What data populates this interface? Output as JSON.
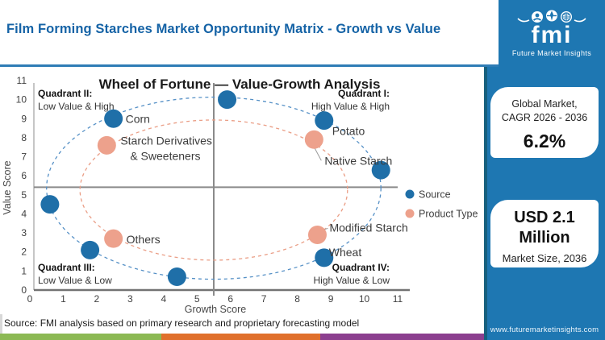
{
  "window": {
    "header_title": "Film Forming Starches Market Opportunity Matrix - Growth vs Value"
  },
  "logo": {
    "brand": "fmi",
    "tagline": "Future Market Insights"
  },
  "sidebar": {
    "cagr_card": {
      "line1": "Global Market,",
      "line2": "CAGR 2026 - 2036",
      "value": "6.2%"
    },
    "size_card": {
      "value": "USD 2.1 Million",
      "label": "Market Size, 2036"
    },
    "website": "www.futuremarketinsights.com"
  },
  "footer": {
    "source_note": "Source: FMI analysis based on primary research and proprietary forecasting model",
    "stripe_colors": [
      "#8cb954",
      "#e0702c",
      "#8c3f8f"
    ]
  },
  "colors": {
    "brand_blue": "#1e77b2",
    "title_blue": "#1563a6",
    "source_series": "#1f6fa8",
    "product_series": "#eda18c"
  },
  "chart_data": {
    "type": "scatter",
    "title": "Wheel of Fortune — Value-Growth Analysis",
    "xlabel": "Growth Score",
    "ylabel": "Value Score",
    "xlim": [
      0,
      11
    ],
    "ylim": [
      0,
      11
    ],
    "x_ticks": [
      0,
      1,
      2,
      3,
      4,
      5,
      6,
      7,
      8,
      9,
      10,
      11
    ],
    "y_ticks": [
      0,
      1,
      2,
      3,
      4,
      5,
      6,
      7,
      8,
      9,
      10,
      11
    ],
    "grid": false,
    "legend_position": "right-middle",
    "quadrant_divider": {
      "x": 5.5,
      "y": 5.4
    },
    "quadrants": [
      {
        "name": "Quadrant I:",
        "desc": "High Value & High",
        "position": "top-right"
      },
      {
        "name": "Quadrant II:",
        "desc": "Low Value & High",
        "position": "top-left"
      },
      {
        "name": "Quadrant III:",
        "desc": "Low Value & Low",
        "position": "bottom-left"
      },
      {
        "name": "Quadrant IV:",
        "desc": "High Value & Low",
        "position": "bottom-right"
      }
    ],
    "legend": [
      {
        "name": "Source",
        "color": "#1f6fa8"
      },
      {
        "name": "Product Type",
        "color": "#eda18c"
      }
    ],
    "rings": [
      {
        "series": "Source",
        "cx": 5.5,
        "cy": 5.35,
        "rx": 5.0,
        "ry": 4.78,
        "color": "#5590c6"
      },
      {
        "series": "Product Type",
        "cx": 5.5,
        "cy": 5.25,
        "rx": 4.0,
        "ry": 3.68,
        "color": "#ea9d85"
      }
    ],
    "series": [
      {
        "name": "Source",
        "color": "#1f6fa8",
        "points": [
          {
            "x": 5.9,
            "y": 10.0,
            "label": ""
          },
          {
            "x": 2.5,
            "y": 9.0,
            "label": "Corn"
          },
          {
            "x": 8.8,
            "y": 8.9,
            "label": "Potato"
          },
          {
            "x": 10.5,
            "y": 6.3,
            "label": ""
          },
          {
            "x": 0.6,
            "y": 4.5,
            "label": ""
          },
          {
            "x": 1.8,
            "y": 2.1,
            "label": ""
          },
          {
            "x": 4.4,
            "y": 0.7,
            "label": ""
          },
          {
            "x": 8.8,
            "y": 1.7,
            "label": "Wheat"
          }
        ]
      },
      {
        "name": "Product Type",
        "color": "#eda18c",
        "points": [
          {
            "x": 2.3,
            "y": 7.6,
            "label": "Starch Derivatives & Sweeteners"
          },
          {
            "x": 8.5,
            "y": 7.9,
            "label": "Native Starch"
          },
          {
            "x": 2.5,
            "y": 2.7,
            "label": "Others"
          },
          {
            "x": 8.6,
            "y": 2.9,
            "label": "Modified Starch"
          }
        ]
      }
    ]
  }
}
